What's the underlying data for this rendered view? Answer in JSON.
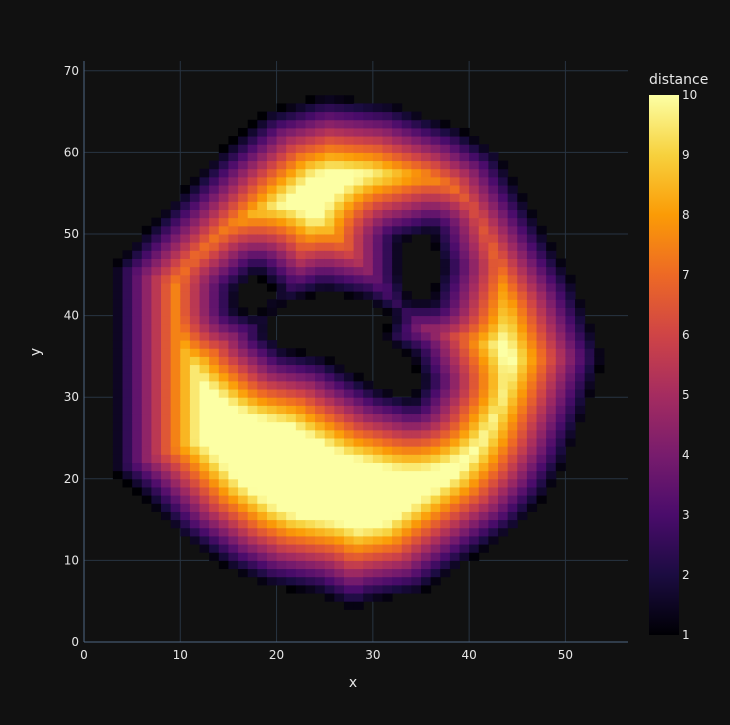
{
  "chart_data": {
    "type": "heatmap",
    "title": "",
    "xlabel": "x",
    "ylabel": "y",
    "xlim": [
      0,
      56.5
    ],
    "ylim": [
      0,
      71.2
    ],
    "x_ticks": [
      0,
      10,
      20,
      30,
      40,
      50
    ],
    "y_ticks": [
      0,
      10,
      20,
      30,
      40,
      50,
      60,
      70
    ],
    "grid": true,
    "colorbar": {
      "title": "distance",
      "min": 1,
      "max": 10,
      "ticks": [
        1,
        2,
        3,
        4,
        5,
        6,
        7,
        8,
        9,
        10
      ],
      "colorscale": [
        "#000004",
        "#1b0c41",
        "#4a0c6b",
        "#781c6d",
        "#a52c60",
        "#cf4446",
        "#ed6925",
        "#fb9b06",
        "#f7d13d",
        "#fcffa4"
      ]
    },
    "cell_size": 1,
    "distance_field": {
      "outer_boundary": [
        [
          3,
          46
        ],
        [
          6,
          50
        ],
        [
          10,
          55
        ],
        [
          14,
          60
        ],
        [
          19,
          65
        ],
        [
          25,
          67
        ],
        [
          32,
          66
        ],
        [
          39,
          63
        ],
        [
          43,
          60
        ],
        [
          47,
          52
        ],
        [
          49,
          48
        ],
        [
          51,
          44
        ],
        [
          53,
          38
        ],
        [
          54,
          35
        ],
        [
          52,
          28
        ],
        [
          50,
          22
        ],
        [
          48,
          18
        ],
        [
          45,
          14
        ],
        [
          40,
          10
        ],
        [
          35,
          6
        ],
        [
          30,
          5
        ],
        [
          28,
          4
        ],
        [
          24,
          6
        ],
        [
          19,
          7
        ],
        [
          15,
          9
        ],
        [
          10,
          13
        ],
        [
          6,
          18
        ],
        [
          3,
          21
        ],
        [
          3,
          30
        ]
      ],
      "inner_boundaries": [
        [
          [
            20,
            41
          ],
          [
            25,
            43
          ],
          [
            29,
            42
          ],
          [
            32,
            40
          ],
          [
            31,
            37
          ],
          [
            34,
            35
          ],
          [
            35,
            32
          ],
          [
            34,
            30
          ],
          [
            31,
            31
          ],
          [
            28,
            33
          ],
          [
            25,
            35
          ],
          [
            21,
            36
          ],
          [
            19,
            38
          ]
        ],
        [
          [
            16,
            43
          ],
          [
            18,
            45
          ],
          [
            20,
            43
          ],
          [
            18,
            40
          ],
          [
            16,
            41
          ]
        ],
        [
          [
            33,
            49
          ],
          [
            36,
            50
          ],
          [
            37,
            46
          ],
          [
            36,
            42
          ],
          [
            34,
            42
          ],
          [
            33,
            45
          ]
        ]
      ]
    }
  }
}
